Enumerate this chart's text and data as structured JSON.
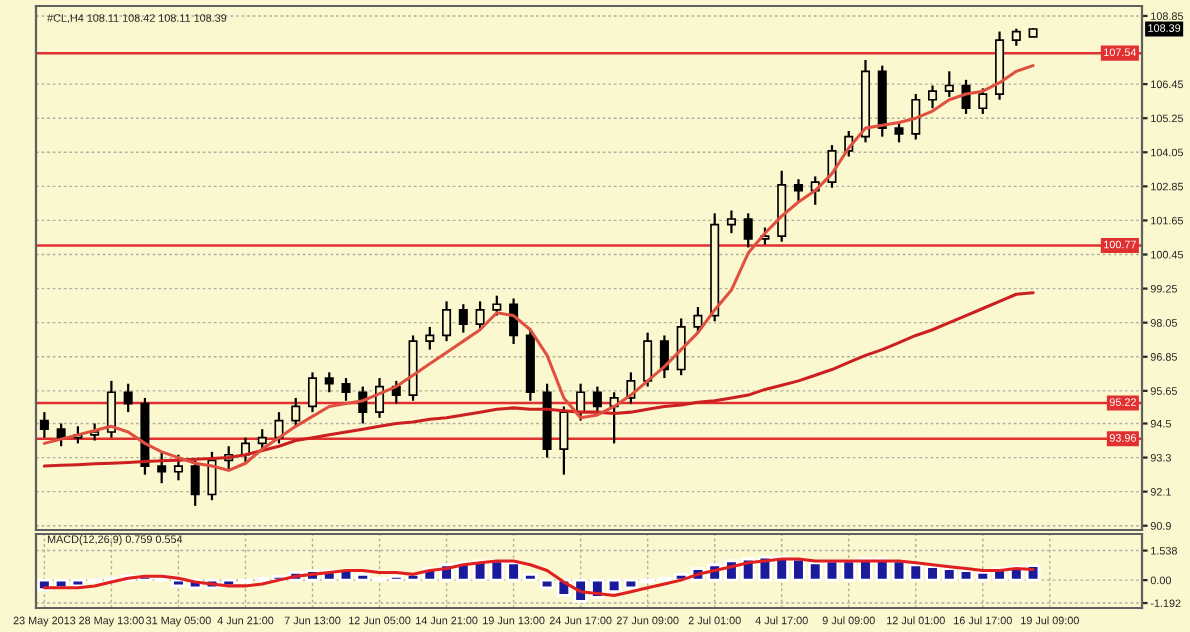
{
  "chart_data": [
    {
      "type": "candlestick",
      "title": "#CL,H4 108.11 108.42 108.11 108.39",
      "color": "#000000",
      "categories": [
        null,
        null,
        null,
        null,
        null,
        null,
        null,
        null,
        null,
        null,
        null,
        null,
        null,
        null,
        null,
        null,
        null,
        null,
        null,
        null,
        null,
        null,
        null,
        null,
        null,
        null,
        null,
        null,
        null,
        null,
        null,
        null,
        null,
        null,
        null,
        null,
        null,
        null,
        null,
        null,
        null,
        null,
        null,
        null,
        null,
        null,
        null,
        null,
        null,
        null,
        null,
        null,
        null,
        null,
        null,
        null,
        null,
        null,
        null,
        null,
        null,
        null,
        null,
        null,
        null,
        null
      ],
      "ohlc": [
        [
          94.6,
          94.9,
          94.0,
          94.3
        ],
        [
          94.3,
          94.5,
          93.7,
          94.0
        ],
        [
          94.0,
          94.4,
          93.8,
          94.1
        ],
        [
          94.1,
          94.5,
          93.9,
          94.2
        ],
        [
          94.2,
          96.0,
          94.0,
          95.6
        ],
        [
          95.6,
          95.9,
          94.9,
          95.2
        ],
        [
          95.2,
          95.4,
          92.7,
          93.0
        ],
        [
          93.0,
          93.5,
          92.4,
          92.8
        ],
        [
          92.8,
          93.4,
          92.5,
          93.0
        ],
        [
          93.0,
          93.2,
          91.6,
          92.0
        ],
        [
          92.0,
          93.5,
          91.8,
          93.2
        ],
        [
          93.2,
          93.7,
          92.9,
          93.4
        ],
        [
          93.4,
          94.0,
          93.1,
          93.8
        ],
        [
          93.8,
          94.3,
          93.6,
          94.0
        ],
        [
          94.0,
          94.9,
          93.8,
          94.6
        ],
        [
          94.6,
          95.4,
          94.4,
          95.1
        ],
        [
          95.1,
          96.3,
          94.9,
          96.1
        ],
        [
          96.1,
          96.3,
          95.6,
          95.9
        ],
        [
          95.9,
          96.1,
          95.3,
          95.6
        ],
        [
          95.6,
          95.8,
          94.5,
          94.9
        ],
        [
          94.9,
          96.1,
          94.7,
          95.8
        ],
        [
          95.8,
          96.0,
          95.2,
          95.5
        ],
        [
          95.5,
          97.6,
          95.3,
          97.4
        ],
        [
          97.4,
          97.9,
          97.1,
          97.6
        ],
        [
          97.6,
          98.8,
          97.4,
          98.5
        ],
        [
          98.5,
          98.7,
          97.7,
          98.0
        ],
        [
          98.0,
          98.8,
          97.8,
          98.5
        ],
        [
          98.5,
          99.0,
          98.3,
          98.7
        ],
        [
          98.7,
          98.9,
          97.3,
          97.6
        ],
        [
          97.6,
          97.8,
          95.3,
          95.6
        ],
        [
          95.6,
          95.9,
          93.3,
          93.6
        ],
        [
          93.6,
          95.1,
          92.7,
          94.9
        ],
        [
          94.9,
          95.9,
          94.6,
          95.6
        ],
        [
          95.6,
          95.8,
          94.8,
          95.1
        ],
        [
          95.1,
          95.6,
          93.8,
          95.4
        ],
        [
          95.4,
          96.3,
          95.2,
          96.0
        ],
        [
          96.0,
          97.7,
          95.8,
          97.4
        ],
        [
          97.4,
          97.6,
          96.1,
          96.4
        ],
        [
          96.4,
          98.2,
          96.2,
          97.9
        ],
        [
          97.9,
          98.6,
          97.7,
          98.3
        ],
        [
          98.3,
          101.9,
          98.1,
          101.5
        ],
        [
          101.5,
          102.0,
          101.2,
          101.7
        ],
        [
          101.7,
          101.9,
          100.7,
          101.0
        ],
        [
          101.0,
          101.4,
          100.8,
          101.1
        ],
        [
          101.1,
          103.4,
          100.9,
          102.9
        ],
        [
          102.9,
          103.1,
          102.3,
          102.7
        ],
        [
          102.7,
          103.2,
          102.2,
          103.0
        ],
        [
          103.0,
          104.3,
          102.8,
          104.1
        ],
        [
          104.1,
          104.8,
          103.9,
          104.6
        ],
        [
          104.6,
          107.3,
          104.4,
          106.9
        ],
        [
          106.9,
          107.1,
          104.6,
          104.9
        ],
        [
          104.9,
          105.1,
          104.4,
          104.7
        ],
        [
          104.7,
          106.1,
          104.5,
          105.9
        ],
        [
          105.9,
          106.4,
          105.6,
          106.2
        ],
        [
          106.2,
          106.9,
          106.0,
          106.4
        ],
        [
          106.4,
          106.6,
          105.4,
          105.6
        ],
        [
          105.6,
          106.3,
          105.4,
          106.1
        ],
        [
          106.1,
          108.3,
          105.9,
          108.0
        ],
        [
          108.0,
          108.4,
          107.8,
          108.3
        ],
        [
          108.11,
          108.42,
          108.11,
          108.39
        ],
        null,
        null,
        null,
        null,
        null,
        null
      ],
      "series": [
        {
          "type": "line",
          "color": "#cc2020",
          "values": [
            93.0,
            93.03,
            93.05,
            93.08,
            93.1,
            93.13,
            93.16,
            93.19,
            93.21,
            93.24,
            93.27,
            93.3,
            93.4,
            93.55,
            93.7,
            93.9,
            94.0,
            94.1,
            94.2,
            94.3,
            94.4,
            94.5,
            94.55,
            94.65,
            94.7,
            94.8,
            94.9,
            95.0,
            95.05,
            95.0,
            95.0,
            94.95,
            94.9,
            94.9,
            94.85,
            94.9,
            95.0,
            95.1,
            95.15,
            95.25,
            95.3,
            95.4,
            95.5,
            95.7,
            95.85,
            96.0,
            96.2,
            96.4,
            96.65,
            96.9,
            97.1,
            97.35,
            97.6,
            97.8,
            98.05,
            98.3,
            98.55,
            98.8,
            99.05,
            99.1,
            null,
            null,
            null,
            null,
            null,
            null
          ]
        },
        {
          "type": "line",
          "color": "#e05040",
          "values": [
            93.8,
            93.95,
            94.1,
            94.25,
            94.4,
            94.2,
            93.8,
            93.5,
            93.3,
            93.1,
            93.0,
            92.85,
            93.1,
            93.6,
            94.0,
            94.4,
            94.75,
            95.1,
            95.2,
            95.3,
            95.55,
            95.8,
            96.2,
            96.6,
            97.0,
            97.4,
            97.8,
            98.4,
            98.3,
            97.8,
            96.9,
            95.4,
            94.7,
            94.8,
            95.1,
            95.5,
            96.0,
            96.5,
            97.1,
            97.7,
            98.5,
            99.2,
            100.5,
            101.2,
            101.8,
            102.3,
            102.7,
            103.3,
            104.2,
            104.9,
            105.0,
            105.1,
            105.25,
            105.5,
            105.9,
            106.1,
            106.2,
            106.5,
            106.9,
            107.1,
            null,
            null,
            null,
            null,
            null,
            null
          ]
        }
      ],
      "ylim": [
        90.75,
        109.2
      ],
      "yticks": [
        108.85,
        106.45,
        105.25,
        104.05,
        102.85,
        101.65,
        100.45,
        99.25,
        98.05,
        96.85,
        95.65,
        94.5,
        93.3,
        92.1,
        90.9
      ],
      "ref_lines": [
        {
          "axis": "y",
          "value": 107.54,
          "label": "107.54",
          "color": "#e03030"
        },
        {
          "axis": "y",
          "value": 100.77,
          "label": "100.77",
          "color": "#e03030"
        },
        {
          "axis": "y",
          "value": 95.22,
          "label": "95.22",
          "color": "#e03030"
        },
        {
          "axis": "y",
          "value": 93.96,
          "label": "93.96",
          "color": "#e03030"
        }
      ],
      "annotations": [
        {
          "text": "108.39",
          "y": 108.39
        }
      ],
      "grid": true,
      "tick_labels": "y"
    },
    {
      "type": "bar",
      "title": "MACD(12,26,9) 0.759 0.554",
      "categories": [
        "23 May 2013",
        null,
        null,
        null,
        "28 May 13:00",
        null,
        null,
        null,
        "31 May 05:00",
        null,
        null,
        null,
        "4 Jun 21:00",
        null,
        null,
        null,
        "7 Jun 13:00",
        null,
        null,
        null,
        "12 Jun 05:00",
        null,
        null,
        null,
        "14 Jun 21:00",
        null,
        null,
        null,
        "19 Jun 13:00",
        null,
        null,
        null,
        "24 Jun 17:00",
        null,
        null,
        null,
        "27 Jun 09:00",
        null,
        null,
        null,
        "2 Jul 01:00",
        null,
        null,
        null,
        "4 Jul 17:00",
        null,
        null,
        null,
        "9 Jul 09:00",
        null,
        null,
        null,
        "12 Jul 01:00",
        null,
        null,
        null,
        "16 Jul 17:00",
        null,
        null,
        null,
        "19 Jul 09:00",
        null,
        null,
        null,
        null,
        null
      ],
      "series": [
        {
          "type": "bar",
          "color": "#1a1a9a",
          "values": [
            -0.5,
            -0.4,
            -0.3,
            -0.1,
            0.1,
            0.2,
            0.2,
            0.1,
            -0.3,
            -0.4,
            -0.4,
            -0.3,
            -0.1,
            0.1,
            0.2,
            0.4,
            0.5,
            0.5,
            0.5,
            0.3,
            0.1,
            0.2,
            0.3,
            0.6,
            0.8,
            0.9,
            1.0,
            1.0,
            0.9,
            0.3,
            -0.4,
            -0.8,
            -1.1,
            -0.9,
            -0.6,
            -0.4,
            -0.1,
            0.1,
            0.3,
            0.6,
            0.8,
            1.0,
            1.1,
            1.2,
            1.2,
            1.1,
            0.9,
            1.0,
            1.0,
            1.1,
            1.1,
            1.0,
            0.8,
            0.7,
            0.6,
            0.5,
            0.4,
            0.6,
            0.7,
            0.759,
            null,
            null,
            null,
            null,
            null,
            null
          ]
        },
        {
          "type": "line",
          "color": "#e02020",
          "values": [
            -0.4,
            -0.4,
            -0.4,
            -0.3,
            -0.1,
            0.1,
            0.2,
            0.2,
            0.1,
            -0.1,
            -0.2,
            -0.3,
            -0.3,
            -0.2,
            0.0,
            0.2,
            0.3,
            0.4,
            0.5,
            0.5,
            0.4,
            0.4,
            0.3,
            0.5,
            0.6,
            0.8,
            0.9,
            1.0,
            1.0,
            0.8,
            0.5,
            -0.1,
            -0.6,
            -0.7,
            -0.8,
            -0.6,
            -0.4,
            -0.2,
            0.0,
            0.3,
            0.5,
            0.7,
            0.9,
            1.0,
            1.1,
            1.1,
            1.0,
            1.0,
            1.0,
            1.0,
            1.0,
            1.0,
            0.9,
            0.8,
            0.7,
            0.6,
            0.5,
            0.5,
            0.6,
            0.554,
            null,
            null,
            null,
            null,
            null,
            null
          ]
        }
      ],
      "ylim": [
        -1.45,
        2.4
      ],
      "yticks": [
        1.538,
        {
          "value": 0,
          "label": "0.00"
        },
        -1.192
      ],
      "grid": true
    }
  ]
}
